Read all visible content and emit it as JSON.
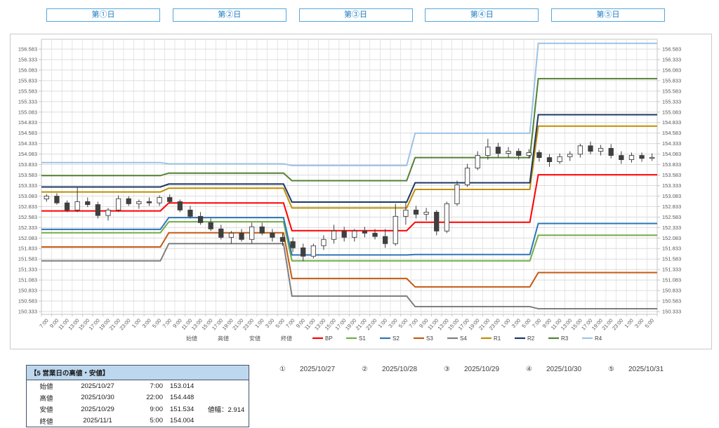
{
  "day_buttons": [
    {
      "label": "第①日"
    },
    {
      "label": "第②日"
    },
    {
      "label": "第③日"
    },
    {
      "label": "第④日"
    },
    {
      "label": "第⑤日"
    }
  ],
  "chart_data": {
    "type": "candlestick",
    "title": "",
    "x_axis": {
      "times_per_day": [
        "7:00",
        "9:00",
        "11:00",
        "13:00",
        "15:00",
        "17:00",
        "19:00",
        "21:00",
        "23:00",
        "1:00",
        "3:00",
        "5:00"
      ],
      "days": 5
    },
    "y_axis": {
      "min": 150.333,
      "max": 156.583,
      "step": 0.25,
      "decimals": 3,
      "sides": "both"
    },
    "grid": true,
    "candles_ohlc": [
      [
        153.014,
        153.13,
        152.95,
        153.08
      ],
      [
        153.08,
        153.15,
        152.88,
        152.92
      ],
      [
        152.92,
        152.98,
        152.7,
        152.75
      ],
      [
        152.75,
        153.3,
        152.7,
        152.95
      ],
      [
        152.95,
        153.05,
        152.82,
        152.88
      ],
      [
        152.88,
        152.95,
        152.55,
        152.62
      ],
      [
        152.62,
        152.8,
        152.5,
        152.75
      ],
      [
        152.75,
        153.1,
        152.7,
        153.02
      ],
      [
        153.02,
        153.08,
        152.85,
        152.9
      ],
      [
        152.9,
        153.0,
        152.78,
        152.95
      ],
      [
        152.95,
        153.05,
        152.85,
        152.92
      ],
      [
        152.92,
        153.1,
        152.85,
        153.05
      ],
      [
        153.05,
        153.12,
        152.9,
        152.95
      ],
      [
        152.95,
        153.0,
        152.7,
        152.75
      ],
      [
        152.75,
        152.85,
        152.55,
        152.6
      ],
      [
        152.6,
        152.7,
        152.4,
        152.45
      ],
      [
        152.45,
        152.55,
        152.25,
        152.3
      ],
      [
        152.3,
        152.4,
        152.05,
        152.1
      ],
      [
        152.1,
        152.25,
        151.95,
        152.2
      ],
      [
        152.2,
        152.3,
        152.0,
        152.05
      ],
      [
        152.05,
        152.45,
        151.95,
        152.35
      ],
      [
        152.35,
        152.45,
        152.15,
        152.2
      ],
      [
        152.2,
        152.3,
        152.0,
        152.1
      ],
      [
        152.1,
        152.2,
        151.9,
        152.0
      ],
      [
        152.0,
        152.1,
        151.75,
        151.85
      ],
      [
        151.85,
        151.95,
        151.534,
        151.65
      ],
      [
        151.65,
        151.95,
        151.6,
        151.9
      ],
      [
        151.9,
        152.15,
        151.8,
        152.05
      ],
      [
        152.05,
        152.4,
        151.95,
        152.25
      ],
      [
        152.25,
        152.35,
        152.0,
        152.1
      ],
      [
        152.1,
        152.3,
        152.0,
        152.25
      ],
      [
        152.25,
        152.35,
        152.1,
        152.2
      ],
      [
        152.2,
        152.3,
        152.05,
        152.12
      ],
      [
        152.12,
        152.3,
        151.85,
        151.95
      ],
      [
        151.95,
        152.9,
        151.9,
        152.6
      ],
      [
        152.6,
        152.95,
        152.4,
        152.75
      ],
      [
        152.75,
        152.85,
        152.55,
        152.65
      ],
      [
        152.65,
        152.8,
        152.5,
        152.7
      ],
      [
        152.7,
        152.75,
        152.15,
        152.25
      ],
      [
        152.25,
        152.95,
        152.2,
        152.9
      ],
      [
        152.9,
        153.45,
        152.85,
        153.35
      ],
      [
        153.35,
        153.85,
        153.3,
        153.75
      ],
      [
        153.75,
        154.15,
        153.7,
        154.05
      ],
      [
        154.05,
        154.448,
        153.95,
        154.25
      ],
      [
        154.25,
        154.35,
        154.0,
        154.1
      ],
      [
        154.1,
        154.25,
        154.0,
        154.15
      ],
      [
        154.15,
        154.22,
        153.95,
        154.05
      ],
      [
        154.05,
        154.2,
        153.98,
        154.12
      ],
      [
        154.12,
        154.18,
        153.9,
        154.0
      ],
      [
        154.0,
        154.08,
        153.78,
        153.9
      ],
      [
        153.9,
        154.1,
        153.85,
        154.02
      ],
      [
        154.02,
        154.15,
        153.92,
        154.08
      ],
      [
        154.08,
        154.33,
        154.0,
        154.28
      ],
      [
        154.28,
        154.38,
        154.08,
        154.15
      ],
      [
        154.15,
        154.3,
        154.05,
        154.22
      ],
      [
        154.22,
        154.32,
        153.98,
        154.05
      ],
      [
        154.05,
        154.15,
        153.85,
        153.95
      ],
      [
        153.95,
        154.12,
        153.88,
        154.05
      ],
      [
        154.05,
        154.12,
        153.9,
        153.98
      ],
      [
        153.98,
        154.1,
        153.92,
        154.004
      ]
    ],
    "pivot_series": [
      {
        "name": "BP",
        "color": "#ff0000",
        "values": [
          152.73,
          152.92,
          152.26,
          152.46,
          153.59
        ]
      },
      {
        "name": "S1",
        "color": "#70ad47",
        "values": [
          152.21,
          152.47,
          151.54,
          151.54,
          152.15
        ]
      },
      {
        "name": "S2",
        "color": "#2e75b6",
        "values": [
          152.29,
          152.57,
          151.68,
          151.69,
          152.43
        ]
      },
      {
        "name": "S3",
        "color": "#c55a11",
        "values": [
          151.87,
          152.21,
          151.12,
          150.92,
          151.26
        ]
      },
      {
        "name": "S4",
        "color": "#7f7f7f",
        "values": [
          151.54,
          151.95,
          150.7,
          150.45,
          150.4
        ]
      },
      {
        "name": "R1",
        "color": "#bf8f00",
        "values": [
          153.18,
          153.27,
          152.8,
          153.24,
          154.75
        ]
      },
      {
        "name": "R2",
        "color": "#1f3864",
        "values": [
          153.3,
          153.37,
          152.94,
          153.4,
          155.02
        ]
      },
      {
        "name": "R3",
        "color": "#538135",
        "values": [
          153.57,
          153.63,
          153.45,
          154.0,
          155.88
        ]
      },
      {
        "name": "R4",
        "color": "#9dc3e6",
        "values": [
          153.88,
          153.85,
          153.81,
          154.58,
          156.72
        ]
      }
    ],
    "legend_text_items": [
      "始値",
      "高値",
      "安値",
      "終値"
    ],
    "legend_position": "bottom"
  },
  "summary_table": {
    "title": "【5 営業日の高値・安値】",
    "rows": [
      {
        "label": "始値",
        "date": "2025/10/27",
        "time": "7:00",
        "value": "153.014",
        "note": ""
      },
      {
        "label": "高値",
        "date": "2025/10/30",
        "time": "22:00",
        "value": "154.448",
        "note": ""
      },
      {
        "label": "安値",
        "date": "2025/10/29",
        "time": "9:00",
        "value": "151.534",
        "note": "値幅：2.914"
      },
      {
        "label": "終値",
        "date": "2025/11/1",
        "time": "5:00",
        "value": "154.004",
        "note": ""
      }
    ]
  },
  "footer_days": [
    {
      "num": "①",
      "date": "2025/10/27"
    },
    {
      "num": "②",
      "date": "2025/10/28"
    },
    {
      "num": "③",
      "date": "2025/10/29"
    },
    {
      "num": "④",
      "date": "2025/10/30"
    },
    {
      "num": "⑤",
      "date": "2025/10/31"
    }
  ],
  "colors": {
    "grid": "#dcdcdc",
    "plot_border": "#c6c6c6",
    "axis_label": "#595959",
    "candle_up_fill": "#ffffff",
    "candle_down_fill": "#3f3f3f",
    "candle_stroke": "#3f3f3f",
    "button_border": "#56a7dc",
    "button_text": "#1c7cc0",
    "table_header_bg": "#bdd7ee",
    "table_border": "#44546a"
  }
}
